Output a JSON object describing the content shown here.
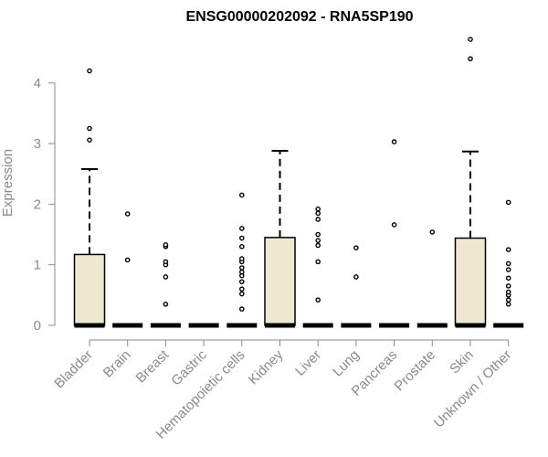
{
  "chart_data": {
    "type": "boxplot",
    "title": "ENSG00000202092 - RNA5SP190",
    "xlabel": "",
    "ylabel": "Expression",
    "ylim": [
      0,
      4.8
    ],
    "yticks": [
      0,
      1,
      2,
      3,
      4
    ],
    "grid": false,
    "colors": {
      "box_fill": "#ede8cf",
      "box_stroke": "#000000",
      "axis": "#8a8a8a",
      "text": "#8a8a8a"
    },
    "categories": [
      "Bladder",
      "Brain",
      "Breast",
      "Gastric",
      "Hematopoietic cells",
      "Kidney",
      "Liver",
      "Lung",
      "Pancreas",
      "Prostate",
      "Skin",
      "Unknown / Other"
    ],
    "boxes": [
      {
        "category": "Bladder",
        "min": 0,
        "q1": 0,
        "median": 0,
        "q3": 1.17,
        "max": 2.58,
        "outliers": [
          3.06,
          3.25,
          4.2
        ]
      },
      {
        "category": "Brain",
        "min": 0,
        "q1": 0,
        "median": 0,
        "q3": 0,
        "max": 0,
        "outliers": [
          1.08,
          1.84
        ]
      },
      {
        "category": "Breast",
        "min": 0,
        "q1": 0,
        "median": 0,
        "q3": 0,
        "max": 0,
        "outliers": [
          0.35,
          0.8,
          1.0,
          1.05,
          1.3,
          1.33
        ]
      },
      {
        "category": "Gastric",
        "min": 0,
        "q1": 0,
        "median": 0,
        "q3": 0,
        "max": 0,
        "outliers": []
      },
      {
        "category": "Hematopoietic cells",
        "min": 0,
        "q1": 0,
        "median": 0,
        "q3": 0,
        "max": 0,
        "outliers": [
          0.27,
          0.52,
          0.6,
          0.72,
          0.82,
          0.88,
          0.95,
          1.05,
          1.1,
          1.3,
          1.44,
          1.6,
          2.15
        ]
      },
      {
        "category": "Kidney",
        "min": 0,
        "q1": 0,
        "median": 0,
        "q3": 1.45,
        "max": 2.88,
        "outliers": []
      },
      {
        "category": "Liver",
        "min": 0,
        "q1": 0,
        "median": 0,
        "q3": 0,
        "max": 0,
        "outliers": [
          0.42,
          1.05,
          1.32,
          1.4,
          1.5,
          1.75,
          1.85,
          1.92
        ]
      },
      {
        "category": "Lung",
        "min": 0,
        "q1": 0,
        "median": 0,
        "q3": 0,
        "max": 0,
        "outliers": [
          0.8,
          1.28
        ]
      },
      {
        "category": "Pancreas",
        "min": 0,
        "q1": 0,
        "median": 0,
        "q3": 0,
        "max": 0,
        "outliers": [
          1.66,
          3.03
        ]
      },
      {
        "category": "Prostate",
        "min": 0,
        "q1": 0,
        "median": 0,
        "q3": 0,
        "max": 0,
        "outliers": [
          1.54
        ]
      },
      {
        "category": "Skin",
        "min": 0,
        "q1": 0,
        "median": 0,
        "q3": 1.44,
        "max": 2.87,
        "outliers": [
          4.4,
          4.72
        ]
      },
      {
        "category": "Unknown / Other",
        "min": 0,
        "q1": 0,
        "median": 0,
        "q3": 0,
        "max": 0,
        "outliers": [
          0.35,
          0.42,
          0.5,
          0.55,
          0.65,
          0.78,
          0.92,
          1.02,
          1.25,
          2.03
        ]
      }
    ]
  }
}
